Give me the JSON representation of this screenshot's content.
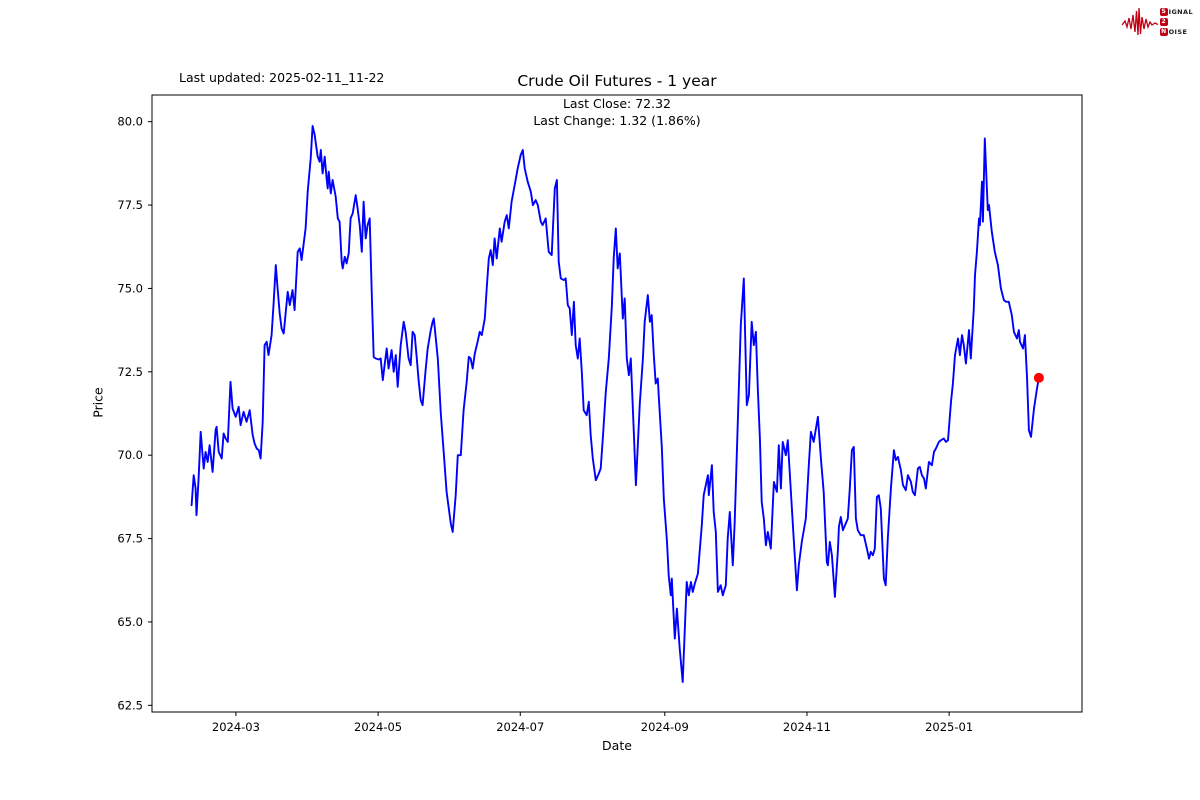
{
  "header": {
    "last_updated": "Last updated: 2025-02-11_11-22",
    "title": "Crude Oil Futures - 1 year",
    "subtitle_line1": "Last Close: 72.32",
    "subtitle_line2": "Last Change: 1.32 (1.86%)"
  },
  "logo": {
    "color": "#c00014",
    "rows": [
      {
        "initial": "S",
        "rest": "IGNAL"
      },
      {
        "initial": "2",
        "rest": ""
      },
      {
        "initial": "N",
        "rest": "OISE"
      }
    ]
  },
  "chart_data": {
    "type": "line",
    "title": "Crude Oil Futures - 1 year",
    "xlabel": "Date",
    "ylabel": "Price",
    "legend": "none",
    "grid": false,
    "line_color": "#0000ff",
    "marker_color": "#ff0000",
    "axis_color": "#000000",
    "last_close": 72.32,
    "last_change_abs": 1.32,
    "last_change_pct": 1.86,
    "x_unit": "days since 2024-02-11",
    "xlim_days": [
      -17,
      382
    ],
    "ylim": [
      62.3,
      80.8
    ],
    "y_ticks": [
      62.5,
      65.0,
      67.5,
      70.0,
      72.5,
      75.0,
      77.5,
      80.0
    ],
    "x_ticks": [
      {
        "label": "2024-03",
        "day": 19
      },
      {
        "label": "2024-05",
        "day": 80
      },
      {
        "label": "2024-07",
        "day": 141
      },
      {
        "label": "2024-09",
        "day": 203
      },
      {
        "label": "2024-11",
        "day": 264
      },
      {
        "label": "2025-01",
        "day": 325
      }
    ],
    "points": [
      [
        0,
        68.5
      ],
      [
        0.9,
        69.4
      ],
      [
        1.7,
        69.0
      ],
      [
        2.1,
        68.2
      ],
      [
        3.0,
        69.3
      ],
      [
        3.9,
        70.7
      ],
      [
        5.2,
        69.6
      ],
      [
        6.0,
        70.1
      ],
      [
        6.9,
        69.8
      ],
      [
        7.7,
        70.3
      ],
      [
        9.0,
        69.5
      ],
      [
        10.3,
        70.75
      ],
      [
        10.7,
        70.85
      ],
      [
        11.6,
        70.1
      ],
      [
        12.9,
        69.9
      ],
      [
        13.7,
        70.65
      ],
      [
        14.6,
        70.5
      ],
      [
        15.5,
        70.4
      ],
      [
        16.7,
        72.2
      ],
      [
        17.6,
        71.4
      ],
      [
        18.9,
        71.15
      ],
      [
        20.2,
        71.45
      ],
      [
        21.0,
        70.9
      ],
      [
        22.3,
        71.3
      ],
      [
        23.6,
        71.0
      ],
      [
        24.9,
        71.35
      ],
      [
        26.2,
        70.6
      ],
      [
        27.0,
        70.35
      ],
      [
        27.9,
        70.2
      ],
      [
        28.8,
        70.15
      ],
      [
        29.6,
        69.9
      ],
      [
        30.5,
        71.0
      ],
      [
        31.3,
        73.3
      ],
      [
        32.2,
        73.4
      ],
      [
        33.0,
        73.0
      ],
      [
        34.3,
        73.6
      ],
      [
        35.2,
        74.6
      ],
      [
        36.1,
        75.7
      ],
      [
        36.9,
        75.0
      ],
      [
        37.8,
        74.25
      ],
      [
        38.6,
        73.8
      ],
      [
        39.5,
        73.65
      ],
      [
        41.2,
        74.9
      ],
      [
        42.1,
        74.5
      ],
      [
        43.3,
        74.95
      ],
      [
        44.2,
        74.35
      ],
      [
        45.5,
        76.1
      ],
      [
        46.4,
        76.2
      ],
      [
        47.2,
        75.85
      ],
      [
        48.9,
        76.8
      ],
      [
        49.8,
        77.9
      ],
      [
        51.1,
        78.9
      ],
      [
        51.9,
        79.87
      ],
      [
        52.8,
        79.6
      ],
      [
        53.2,
        79.4
      ],
      [
        54.1,
        78.95
      ],
      [
        54.9,
        78.8
      ],
      [
        55.4,
        79.15
      ],
      [
        56.2,
        78.45
      ],
      [
        57.1,
        78.95
      ],
      [
        57.9,
        78.3
      ],
      [
        58.4,
        78.0
      ],
      [
        58.8,
        78.5
      ],
      [
        59.7,
        77.85
      ],
      [
        60.5,
        78.25
      ],
      [
        61.8,
        77.75
      ],
      [
        62.7,
        77.1
      ],
      [
        63.5,
        77.0
      ],
      [
        64.4,
        75.8
      ],
      [
        64.8,
        75.6
      ],
      [
        65.7,
        75.95
      ],
      [
        66.5,
        75.75
      ],
      [
        67.4,
        76.05
      ],
      [
        68.2,
        77.1
      ],
      [
        69.1,
        77.25
      ],
      [
        70.4,
        77.8
      ],
      [
        71.2,
        77.4
      ],
      [
        72.1,
        76.9
      ],
      [
        73.0,
        76.1
      ],
      [
        73.8,
        77.6
      ],
      [
        74.7,
        76.5
      ],
      [
        75.5,
        76.9
      ],
      [
        76.4,
        77.1
      ],
      [
        77.3,
        74.8
      ],
      [
        78.1,
        72.94
      ],
      [
        79.0,
        72.9
      ],
      [
        80.3,
        72.87
      ],
      [
        81.1,
        72.9
      ],
      [
        82.0,
        72.25
      ],
      [
        82.8,
        72.7
      ],
      [
        83.7,
        73.2
      ],
      [
        84.5,
        72.6
      ],
      [
        85.8,
        73.15
      ],
      [
        86.7,
        72.5
      ],
      [
        87.6,
        73.0
      ],
      [
        88.4,
        72.05
      ],
      [
        89.7,
        73.3
      ],
      [
        91.0,
        74.0
      ],
      [
        91.8,
        73.7
      ],
      [
        93.1,
        72.9
      ],
      [
        94.0,
        72.7
      ],
      [
        94.8,
        73.7
      ],
      [
        95.7,
        73.6
      ],
      [
        96.6,
        72.9
      ],
      [
        97.4,
        72.25
      ],
      [
        98.3,
        71.65
      ],
      [
        99.1,
        71.5
      ],
      [
        100.4,
        72.55
      ],
      [
        101.3,
        73.2
      ],
      [
        102.6,
        73.75
      ],
      [
        103.4,
        74.0
      ],
      [
        103.9,
        74.1
      ],
      [
        105.6,
        72.9
      ],
      [
        106.9,
        71.25
      ],
      [
        108.2,
        70.05
      ],
      [
        109.4,
        68.9
      ],
      [
        111.2,
        67.95
      ],
      [
        112.0,
        67.7
      ],
      [
        113.3,
        68.8
      ],
      [
        114.2,
        70.0
      ],
      [
        115.5,
        70.0
      ],
      [
        116.7,
        71.35
      ],
      [
        118.0,
        72.2
      ],
      [
        118.9,
        72.95
      ],
      [
        119.7,
        72.9
      ],
      [
        120.6,
        72.6
      ],
      [
        121.5,
        73.05
      ],
      [
        122.7,
        73.4
      ],
      [
        123.6,
        73.7
      ],
      [
        124.5,
        73.6
      ],
      [
        125.8,
        74.1
      ],
      [
        126.6,
        75.0
      ],
      [
        127.5,
        75.9
      ],
      [
        128.3,
        76.15
      ],
      [
        129.2,
        75.7
      ],
      [
        130.0,
        76.5
      ],
      [
        130.9,
        75.9
      ],
      [
        132.2,
        76.8
      ],
      [
        133.0,
        76.4
      ],
      [
        134.3,
        77.0
      ],
      [
        135.2,
        77.2
      ],
      [
        136.1,
        76.8
      ],
      [
        137.3,
        77.6
      ],
      [
        138.6,
        78.1
      ],
      [
        139.9,
        78.6
      ],
      [
        141.2,
        79.0
      ],
      [
        142.1,
        79.15
      ],
      [
        142.9,
        78.6
      ],
      [
        144.2,
        78.2
      ],
      [
        145.5,
        77.9
      ],
      [
        146.4,
        77.5
      ],
      [
        147.6,
        77.65
      ],
      [
        148.5,
        77.5
      ],
      [
        149.8,
        77.0
      ],
      [
        150.6,
        76.9
      ],
      [
        151.9,
        77.1
      ],
      [
        153.2,
        76.1
      ],
      [
        154.5,
        76.0
      ],
      [
        155.8,
        78.0
      ],
      [
        156.7,
        78.25
      ],
      [
        157.5,
        75.8
      ],
      [
        158.4,
        75.3
      ],
      [
        159.7,
        75.25
      ],
      [
        160.5,
        75.3
      ],
      [
        161.4,
        74.5
      ],
      [
        162.2,
        74.4
      ],
      [
        163.1,
        73.6
      ],
      [
        164.0,
        74.6
      ],
      [
        164.8,
        73.3
      ],
      [
        165.7,
        72.9
      ],
      [
        166.5,
        73.5
      ],
      [
        167.4,
        72.5
      ],
      [
        168.2,
        71.35
      ],
      [
        169.5,
        71.2
      ],
      [
        170.4,
        71.6
      ],
      [
        171.2,
        70.6
      ],
      [
        172.1,
        69.9
      ],
      [
        173.4,
        69.25
      ],
      [
        174.7,
        69.45
      ],
      [
        175.5,
        69.6
      ],
      [
        176.4,
        70.5
      ],
      [
        177.7,
        71.9
      ],
      [
        179.0,
        72.9
      ],
      [
        180.3,
        74.5
      ],
      [
        181.1,
        75.9
      ],
      [
        182.0,
        76.8
      ],
      [
        182.8,
        75.6
      ],
      [
        183.7,
        76.05
      ],
      [
        185.0,
        74.1
      ],
      [
        185.8,
        74.7
      ],
      [
        186.7,
        72.9
      ],
      [
        187.6,
        72.4
      ],
      [
        188.4,
        72.9
      ],
      [
        189.7,
        70.7
      ],
      [
        190.6,
        69.1
      ],
      [
        192.3,
        71.55
      ],
      [
        193.6,
        72.9
      ],
      [
        194.4,
        74.0
      ],
      [
        195.7,
        74.8
      ],
      [
        196.6,
        74.0
      ],
      [
        197.4,
        74.2
      ],
      [
        198.3,
        73.0
      ],
      [
        199.1,
        72.15
      ],
      [
        200.0,
        72.3
      ],
      [
        200.4,
        71.8
      ],
      [
        201.7,
        70.25
      ],
      [
        202.6,
        68.7
      ],
      [
        203.9,
        67.45
      ],
      [
        204.7,
        66.4
      ],
      [
        205.6,
        65.8
      ],
      [
        206.0,
        66.3
      ],
      [
        207.3,
        64.5
      ],
      [
        208.2,
        65.4
      ],
      [
        209.4,
        64.2
      ],
      [
        210.7,
        63.2
      ],
      [
        212.4,
        66.2
      ],
      [
        213.3,
        65.8
      ],
      [
        214.2,
        66.2
      ],
      [
        215.0,
        65.9
      ],
      [
        215.9,
        66.15
      ],
      [
        217.2,
        66.45
      ],
      [
        218.9,
        67.9
      ],
      [
        219.7,
        68.8
      ],
      [
        221.5,
        69.4
      ],
      [
        221.9,
        68.8
      ],
      [
        223.2,
        69.7
      ],
      [
        224.0,
        68.3
      ],
      [
        224.9,
        67.7
      ],
      [
        225.8,
        65.9
      ],
      [
        227.0,
        66.1
      ],
      [
        227.9,
        65.8
      ],
      [
        229.2,
        66.1
      ],
      [
        230.0,
        67.5
      ],
      [
        230.9,
        68.3
      ],
      [
        232.2,
        66.7
      ],
      [
        233.0,
        68.0
      ],
      [
        234.3,
        70.9
      ],
      [
        235.6,
        73.9
      ],
      [
        236.9,
        75.3
      ],
      [
        238.2,
        71.5
      ],
      [
        239.1,
        71.8
      ],
      [
        240.3,
        74.0
      ],
      [
        241.2,
        73.3
      ],
      [
        242.1,
        73.7
      ],
      [
        242.9,
        72.0
      ],
      [
        243.8,
        70.5
      ],
      [
        244.6,
        68.6
      ],
      [
        245.5,
        68.1
      ],
      [
        246.4,
        67.3
      ],
      [
        247.2,
        67.7
      ],
      [
        248.5,
        67.2
      ],
      [
        249.8,
        69.2
      ],
      [
        251.1,
        68.9
      ],
      [
        251.9,
        70.3
      ],
      [
        252.8,
        69.0
      ],
      [
        253.6,
        70.4
      ],
      [
        254.9,
        70.0
      ],
      [
        255.8,
        70.45
      ],
      [
        257.1,
        68.9
      ],
      [
        258.4,
        67.4
      ],
      [
        259.7,
        65.95
      ],
      [
        260.5,
        66.7
      ],
      [
        261.8,
        67.4
      ],
      [
        263.5,
        68.1
      ],
      [
        264.8,
        69.7
      ],
      [
        265.7,
        70.7
      ],
      [
        266.9,
        70.4
      ],
      [
        268.7,
        71.15
      ],
      [
        270.0,
        69.9
      ],
      [
        271.2,
        68.9
      ],
      [
        272.5,
        66.8
      ],
      [
        273.0,
        66.7
      ],
      [
        273.8,
        67.4
      ],
      [
        274.7,
        67.0
      ],
      [
        276.0,
        65.75
      ],
      [
        277.3,
        67.2
      ],
      [
        277.7,
        67.85
      ],
      [
        278.5,
        68.15
      ],
      [
        279.4,
        67.75
      ],
      [
        280.3,
        67.9
      ],
      [
        281.5,
        68.1
      ],
      [
        282.4,
        69.0
      ],
      [
        283.3,
        70.15
      ],
      [
        284.1,
        70.25
      ],
      [
        285.0,
        68.1
      ],
      [
        285.8,
        67.75
      ],
      [
        287.1,
        67.6
      ],
      [
        288.4,
        67.6
      ],
      [
        289.7,
        67.2
      ],
      [
        290.6,
        66.9
      ],
      [
        291.4,
        67.1
      ],
      [
        292.3,
        67.0
      ],
      [
        293.1,
        67.2
      ],
      [
        294.0,
        68.75
      ],
      [
        294.8,
        68.8
      ],
      [
        295.7,
        68.4
      ],
      [
        297.0,
        66.3
      ],
      [
        297.8,
        66.1
      ],
      [
        298.7,
        67.5
      ],
      [
        300.0,
        69.0
      ],
      [
        301.3,
        70.15
      ],
      [
        302.1,
        69.85
      ],
      [
        303.0,
        69.95
      ],
      [
        304.3,
        69.55
      ],
      [
        305.2,
        69.1
      ],
      [
        306.4,
        68.95
      ],
      [
        307.3,
        69.4
      ],
      [
        308.6,
        69.2
      ],
      [
        309.4,
        68.9
      ],
      [
        310.3,
        68.8
      ],
      [
        311.6,
        69.6
      ],
      [
        312.4,
        69.65
      ],
      [
        313.3,
        69.4
      ],
      [
        314.2,
        69.3
      ],
      [
        315.0,
        69.0
      ],
      [
        316.3,
        69.8
      ],
      [
        317.6,
        69.7
      ],
      [
        318.5,
        70.1
      ],
      [
        319.3,
        70.2
      ],
      [
        320.6,
        70.4
      ],
      [
        321.5,
        70.45
      ],
      [
        322.7,
        70.5
      ],
      [
        323.6,
        70.4
      ],
      [
        324.5,
        70.45
      ],
      [
        325.8,
        71.6
      ],
      [
        326.6,
        72.15
      ],
      [
        327.5,
        73.0
      ],
      [
        328.8,
        73.5
      ],
      [
        329.6,
        73.0
      ],
      [
        330.5,
        73.6
      ],
      [
        331.3,
        73.3
      ],
      [
        332.2,
        72.75
      ],
      [
        333.5,
        73.75
      ],
      [
        334.3,
        72.9
      ],
      [
        335.6,
        74.4
      ],
      [
        336.1,
        75.4
      ],
      [
        336.9,
        76.1
      ],
      [
        337.8,
        77.1
      ],
      [
        338.2,
        76.9
      ],
      [
        339.1,
        78.2
      ],
      [
        339.5,
        77.0
      ],
      [
        340.3,
        79.5
      ],
      [
        341.6,
        77.35
      ],
      [
        342.1,
        77.5
      ],
      [
        343.3,
        76.7
      ],
      [
        344.6,
        76.1
      ],
      [
        345.9,
        75.7
      ],
      [
        347.2,
        75.0
      ],
      [
        348.5,
        74.65
      ],
      [
        349.4,
        74.6
      ],
      [
        350.6,
        74.6
      ],
      [
        351.9,
        74.2
      ],
      [
        352.8,
        73.7
      ],
      [
        354.1,
        73.5
      ],
      [
        354.9,
        73.75
      ],
      [
        355.4,
        73.4
      ],
      [
        356.7,
        73.2
      ],
      [
        357.5,
        73.6
      ],
      [
        358.4,
        72.35
      ],
      [
        359.2,
        70.75
      ],
      [
        360.1,
        70.55
      ],
      [
        361.4,
        71.4
      ],
      [
        362.7,
        72.0
      ],
      [
        363.5,
        72.32
      ]
    ]
  }
}
